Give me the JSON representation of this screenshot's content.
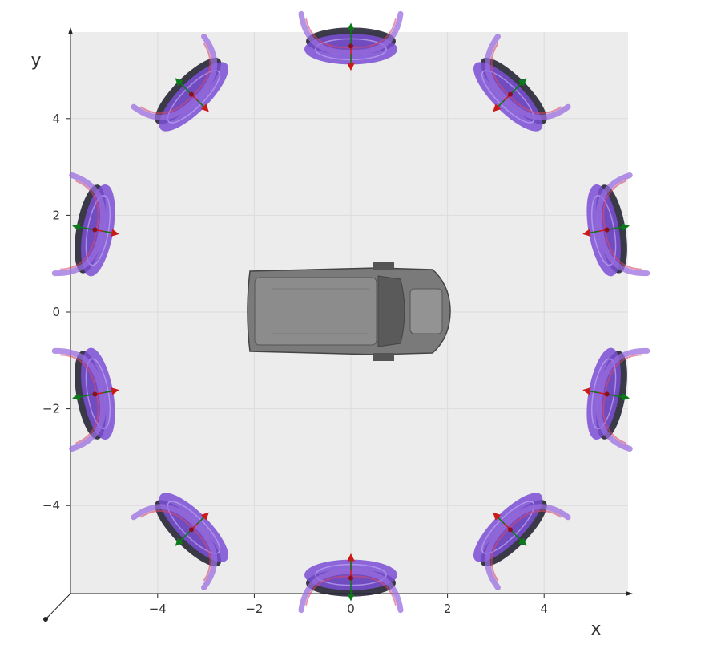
{
  "axes": {
    "x_label": "x",
    "y_label": "y",
    "x_ticks": [
      "−4",
      "−2",
      "0",
      "2",
      "4"
    ],
    "y_ticks": [
      "4",
      "2",
      "0",
      "−2",
      "−4"
    ],
    "x_range": [
      -5.8,
      5.8
    ],
    "y_range": [
      -5.8,
      5.8
    ]
  },
  "colors": {
    "plot_background": "#ececec",
    "grid": "#dcdcdc",
    "sensor_fill": "#7b4fd6",
    "sensor_shadow": "#1a1a2a",
    "arc": "#9a6ee0",
    "arc_red": "#d84a6a",
    "arrow_green": "#0a7a1a",
    "arrow_red": "#cc1a1a",
    "vehicle": "#6e6e6e"
  },
  "object": {
    "type": "vehicle-top-view",
    "center": [
      -0.1,
      0.0
    ]
  },
  "sensors": [
    {
      "id": "front",
      "x": 0.0,
      "y": 5.5,
      "angle_deg": 90
    },
    {
      "id": "front-right",
      "x": 3.3,
      "y": 4.5,
      "angle_deg": 45
    },
    {
      "id": "right-upper",
      "x": 5.3,
      "y": 1.7,
      "angle_deg": 10
    },
    {
      "id": "right-lower",
      "x": 5.3,
      "y": -1.7,
      "angle_deg": -10
    },
    {
      "id": "rear-right",
      "x": 3.3,
      "y": -4.5,
      "angle_deg": -45
    },
    {
      "id": "rear",
      "x": 0.0,
      "y": -5.5,
      "angle_deg": -90
    },
    {
      "id": "rear-left",
      "x": -3.3,
      "y": -4.5,
      "angle_deg": -135
    },
    {
      "id": "left-lower",
      "x": -5.3,
      "y": -1.7,
      "angle_deg": 190
    },
    {
      "id": "left-upper",
      "x": -5.3,
      "y": 1.7,
      "angle_deg": 170
    },
    {
      "id": "front-left",
      "x": -3.3,
      "y": 4.5,
      "angle_deg": 135
    }
  ]
}
